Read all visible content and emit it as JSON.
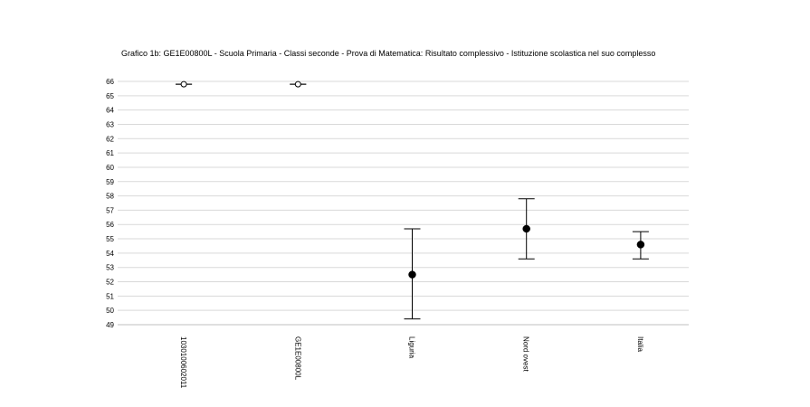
{
  "chart_data": {
    "type": "errorbar",
    "title": "Grafico 1b: GE1E00800L - Scuola Primaria - Classi seconde - Prova di Matematica: Risultato complessivo - Istituzione scolastica nel suo complesso",
    "categories": [
      "1030100602011",
      "GE1E00800L",
      "Liguria",
      "Nord ovest",
      "Italia"
    ],
    "series": [
      {
        "values": [
          65.8,
          65.8,
          52.5,
          55.7,
          54.6
        ],
        "lower": [
          65.8,
          65.8,
          49.4,
          53.6,
          53.6
        ],
        "upper": [
          65.8,
          65.8,
          55.7,
          57.8,
          55.5
        ],
        "marker_fill": [
          "#ffffff",
          "#ffffff",
          "#000000",
          "#000000",
          "#000000"
        ]
      }
    ],
    "xlabel": "",
    "ylabel": "",
    "ylim": [
      49,
      66
    ],
    "yticks": [
      49,
      50,
      51,
      52,
      53,
      54,
      55,
      56,
      57,
      58,
      59,
      60,
      61,
      62,
      63,
      64,
      65,
      66
    ],
    "grid": true,
    "legend": "none",
    "colors": {
      "grid": "#d9d9d9",
      "axis": "#bfbfbf",
      "marker": "#000000",
      "errorbar": "#000000"
    }
  }
}
